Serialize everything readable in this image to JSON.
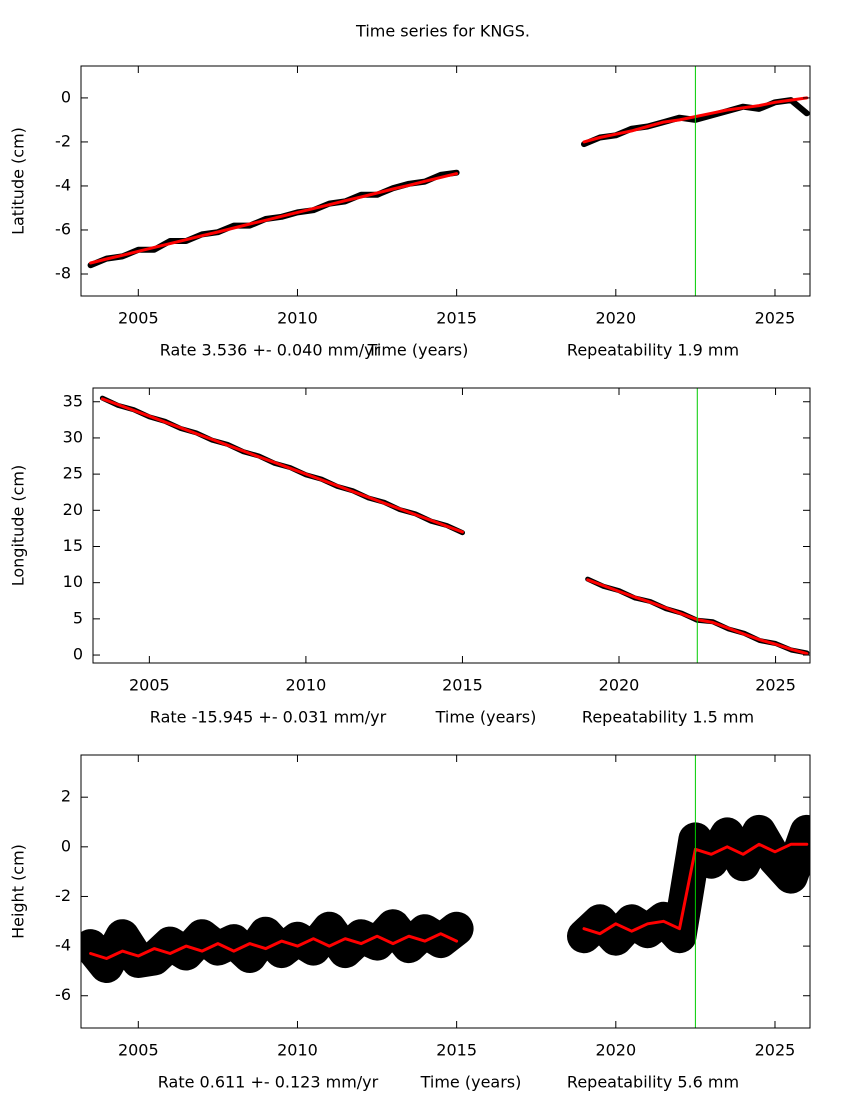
{
  "title": "Time series for KNGS.",
  "chart_data": [
    {
      "type": "line",
      "ylabel": "Latitude (cm)",
      "rate_label": "Rate 3.536 +- 0.040 mm/yr",
      "xlabel": "Time (years)",
      "repeatability_label": "Repeatability 1.9 mm",
      "x": [
        2003.5,
        2004,
        2004.5,
        2005,
        2005.5,
        2006,
        2006.5,
        2007,
        2007.5,
        2008,
        2008.5,
        2009,
        2009.5,
        2010,
        2010.5,
        2011,
        2011.5,
        2012,
        2012.5,
        2013,
        2013.5,
        2014,
        2014.5,
        2015,
        2015.5,
        2016,
        2016.5,
        2017,
        2017.5,
        2018,
        2018.5,
        2019,
        2019.5,
        2020,
        2020.5,
        2021,
        2021.5,
        2022,
        2022.5,
        2023,
        2023.5,
        2024,
        2024.5,
        2025,
        2025.5,
        2026
      ],
      "series": [
        {
          "color": "#000000",
          "values": [
            -7.6,
            -7.3,
            -7.2,
            -6.9,
            -6.9,
            -6.5,
            -6.5,
            -6.2,
            -6.1,
            -5.8,
            -5.8,
            -5.5,
            -5.4,
            -5.2,
            -5.1,
            -4.8,
            -4.7,
            -4.4,
            -4.4,
            -4.1,
            -3.9,
            -3.8,
            -3.5,
            -3.4,
            null,
            null,
            null,
            null,
            null,
            null,
            null,
            -2.1,
            -1.8,
            -1.7,
            -1.4,
            -1.3,
            -1.1,
            -0.9,
            -1.0,
            -0.8,
            -0.6,
            -0.4,
            -0.5,
            -0.2,
            -0.1,
            -0.7
          ]
        },
        {
          "color": "#ff0000",
          "values": [
            -7.5,
            -7.32,
            -7.15,
            -6.97,
            -6.79,
            -6.62,
            -6.44,
            -6.26,
            -6.09,
            -5.91,
            -5.73,
            -5.56,
            -5.38,
            -5.2,
            -5.03,
            -4.85,
            -4.67,
            -4.5,
            -4.32,
            -4.14,
            -3.97,
            -3.79,
            -3.61,
            -3.44,
            null,
            null,
            null,
            null,
            null,
            null,
            null,
            -2.0,
            -1.8,
            -1.65,
            -1.5,
            -1.3,
            -1.1,
            -1.0,
            -0.85,
            -0.7,
            -0.55,
            -0.45,
            -0.35,
            -0.2,
            -0.1,
            0.0
          ]
        }
      ],
      "vline": {
        "x": 2022.5,
        "color": "#00cc00"
      },
      "xlim": [
        2003.2,
        2026.1
      ],
      "xticks": [
        2005,
        2010,
        2015,
        2020,
        2025
      ],
      "ylim": [
        -9,
        1.45
      ],
      "yticks": [
        -8,
        -6,
        -4,
        -2,
        0
      ]
    },
    {
      "type": "line",
      "ylabel": "Longitude (cm)",
      "rate_label": "Rate -15.945 +- 0.031 mm/yr",
      "xlabel": "Time (years)",
      "repeatability_label": "Repeatability 1.5 mm",
      "x": [
        2003.5,
        2004,
        2004.5,
        2005,
        2005.5,
        2006,
        2006.5,
        2007,
        2007.5,
        2008,
        2008.5,
        2009,
        2009.5,
        2010,
        2010.5,
        2011,
        2011.5,
        2012,
        2012.5,
        2013,
        2013.5,
        2014,
        2014.5,
        2015,
        2015.5,
        2016,
        2016.5,
        2017,
        2017.5,
        2018,
        2018.5,
        2019,
        2019.5,
        2020,
        2020.5,
        2021,
        2021.5,
        2022,
        2022.5,
        2023,
        2023.5,
        2024,
        2024.5,
        2025,
        2025.5,
        2026
      ],
      "series": [
        {
          "color": "#000000",
          "values": [
            35.5,
            34.5,
            33.9,
            32.9,
            32.3,
            31.3,
            30.7,
            29.7,
            29.1,
            28.1,
            27.5,
            26.5,
            25.9,
            24.9,
            24.3,
            23.3,
            22.7,
            21.7,
            21.1,
            20.1,
            19.5,
            18.5,
            17.9,
            16.9,
            null,
            null,
            null,
            null,
            null,
            null,
            null,
            10.5,
            9.5,
            8.9,
            7.9,
            7.4,
            6.4,
            5.8,
            4.8,
            4.6,
            3.6,
            3.0,
            2.0,
            1.6,
            0.7,
            0.3
          ]
        },
        {
          "color": "#ff0000",
          "values": [
            35.4,
            34.6,
            33.8,
            33.0,
            32.2,
            31.4,
            30.6,
            29.8,
            29.0,
            28.2,
            27.4,
            26.6,
            25.8,
            25.0,
            24.2,
            23.4,
            22.6,
            21.8,
            21.0,
            20.2,
            19.4,
            18.6,
            17.8,
            17.0,
            null,
            null,
            null,
            null,
            null,
            null,
            null,
            10.4,
            9.6,
            8.8,
            8.0,
            7.3,
            6.5,
            5.7,
            4.9,
            4.5,
            3.7,
            2.9,
            2.1,
            1.5,
            0.8,
            0.2
          ]
        }
      ],
      "vline": {
        "x": 2022.5,
        "color": "#00cc00"
      },
      "xlim": [
        2003.2,
        2026.1
      ],
      "xticks": [
        2005,
        2010,
        2015,
        2020,
        2025
      ],
      "ylim": [
        -1.1,
        36.9
      ],
      "yticks": [
        0,
        5,
        10,
        15,
        20,
        25,
        30,
        35
      ]
    },
    {
      "type": "line",
      "ylabel": "Height (cm)",
      "rate_label": "Rate 0.611 +- 0.123 mm/yr",
      "xlabel": "Time (years)",
      "repeatability_label": "Repeatability 5.6 mm",
      "x": [
        2003.5,
        2004,
        2004.5,
        2005,
        2005.5,
        2006,
        2006.5,
        2007,
        2007.5,
        2008,
        2008.5,
        2009,
        2009.5,
        2010,
        2010.5,
        2011,
        2011.5,
        2012,
        2012.5,
        2013,
        2013.5,
        2014,
        2014.5,
        2015,
        2015.5,
        2016,
        2016.5,
        2017,
        2017.5,
        2018,
        2018.5,
        2019,
        2019.5,
        2020,
        2020.5,
        2021,
        2021.5,
        2022,
        2022.5,
        2023,
        2023.5,
        2024,
        2024.5,
        2025,
        2025.5,
        2026
      ],
      "series": [
        {
          "color": "#000000",
          "values": [
            -4.0,
            -4.8,
            -3.6,
            -4.6,
            -4.5,
            -3.9,
            -4.3,
            -3.6,
            -4.1,
            -3.8,
            -4.4,
            -3.5,
            -4.2,
            -3.7,
            -4.1,
            -3.3,
            -4.2,
            -3.6,
            -3.9,
            -3.2,
            -4.0,
            -3.4,
            -3.8,
            -3.3,
            null,
            null,
            null,
            null,
            null,
            null,
            null,
            -3.6,
            -3.0,
            -3.7,
            -3.0,
            -3.4,
            -2.9,
            -3.6,
            0.3,
            -0.6,
            0.5,
            -0.7,
            0.6,
            -0.5,
            -1.2,
            0.6
          ]
        },
        {
          "color": "#ff0000",
          "values": [
            -4.3,
            -4.5,
            -4.2,
            -4.4,
            -4.1,
            -4.3,
            -4.0,
            -4.2,
            -3.9,
            -4.2,
            -3.9,
            -4.1,
            -3.8,
            -4.0,
            -3.7,
            -4.0,
            -3.7,
            -3.9,
            -3.6,
            -3.9,
            -3.6,
            -3.8,
            -3.5,
            -3.8,
            null,
            null,
            null,
            null,
            null,
            null,
            null,
            -3.3,
            -3.5,
            -3.1,
            -3.4,
            -3.1,
            -3.0,
            -3.3,
            -0.1,
            -0.3,
            0.0,
            -0.3,
            0.1,
            -0.2,
            0.1,
            0.1
          ]
        }
      ],
      "vline": {
        "x": 2022.5,
        "color": "#00cc00"
      },
      "xlim": [
        2003.2,
        2026.1
      ],
      "xticks": [
        2005,
        2010,
        2015,
        2020,
        2025
      ],
      "ylim": [
        -7.3,
        3.7
      ],
      "yticks": [
        -6,
        -4,
        -2,
        0,
        2
      ]
    }
  ]
}
